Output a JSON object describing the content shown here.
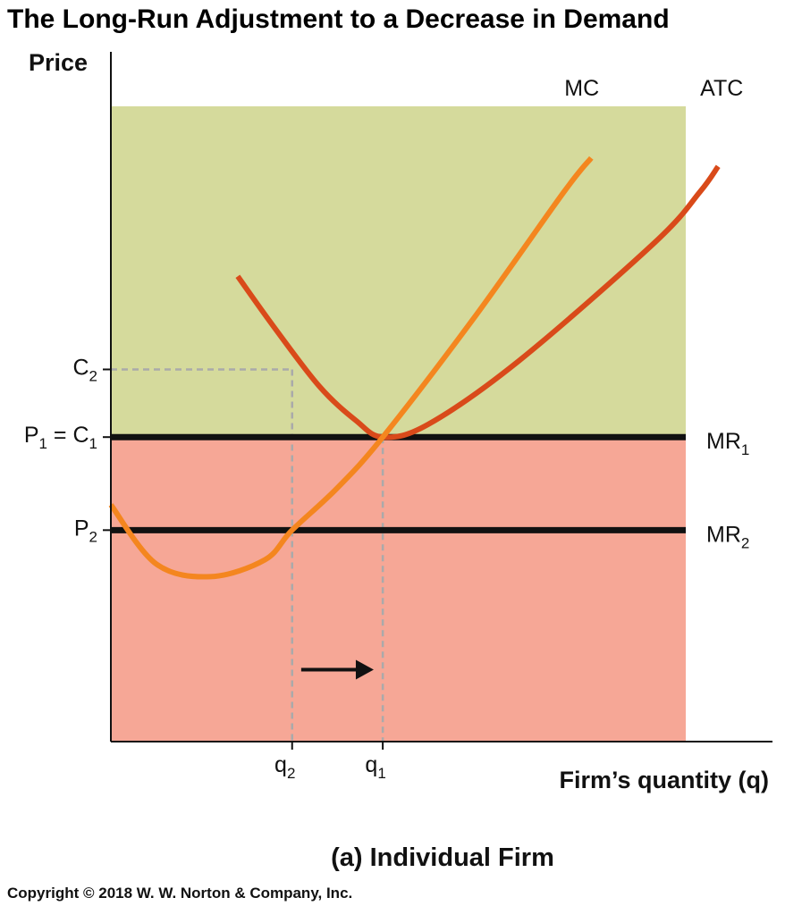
{
  "title": "The Long-Run Adjustment to a Decrease in Demand",
  "caption": "(a) Individual Firm",
  "copyright": "Copyright © 2018 W. W. Norton & Company, Inc.",
  "colors": {
    "loss_region": "#f6a796",
    "upper_region": "#d5da9c",
    "mc_curve": "#f4861f",
    "atc_curve": "#d94a1a",
    "mr_line": "#111111",
    "guide_line": "#aaaaaa"
  },
  "chart_data": {
    "type": "line",
    "title": "The Long-Run Adjustment to a Decrease in Demand",
    "xlabel": "Firm’s quantity (q)",
    "ylabel": "Price",
    "x_ticks": [
      {
        "main": "q",
        "sub": "2",
        "value": 2
      },
      {
        "main": "q",
        "sub": "1",
        "value": 3
      }
    ],
    "y_ticks": [
      {
        "main": "C",
        "sub": "2",
        "value": 4.4
      },
      {
        "main": "P",
        "sub": "1",
        "suffix_main": " = C",
        "suffix_sub": "1",
        "value": 3.6
      },
      {
        "main": "P",
        "sub": "2",
        "value": 2.5
      }
    ],
    "horizontal_lines": [
      {
        "name": "MR",
        "sub": "1",
        "y": 3.6
      },
      {
        "name": "MR",
        "sub": "2",
        "y": 2.5
      }
    ],
    "series": [
      {
        "name": "MC",
        "points": [
          [
            0,
            2.8
          ],
          [
            0.5,
            2.1
          ],
          [
            1.1,
            1.95
          ],
          [
            1.7,
            2.15
          ],
          [
            2.0,
            2.5
          ],
          [
            2.5,
            3.0
          ],
          [
            3.0,
            3.6
          ],
          [
            4.0,
            5.0
          ],
          [
            5.0,
            6.5
          ],
          [
            5.3,
            6.9
          ]
        ]
      },
      {
        "name": "ATC",
        "points": [
          [
            1.4,
            5.5
          ],
          [
            1.8,
            4.9
          ],
          [
            2.3,
            4.2
          ],
          [
            2.7,
            3.8
          ],
          [
            3.0,
            3.6
          ],
          [
            3.5,
            3.75
          ],
          [
            4.5,
            4.5
          ],
          [
            6.0,
            5.9
          ],
          [
            6.5,
            6.5
          ],
          [
            6.7,
            6.8
          ]
        ]
      }
    ],
    "arrow": {
      "from": [
        2.1,
        0.85
      ],
      "to": [
        2.9,
        0.85
      ],
      "direction": "right"
    },
    "xlim": [
      0,
      7.3
    ],
    "ylim": [
      0,
      7.5
    ],
    "grid": false,
    "legend": "none"
  }
}
